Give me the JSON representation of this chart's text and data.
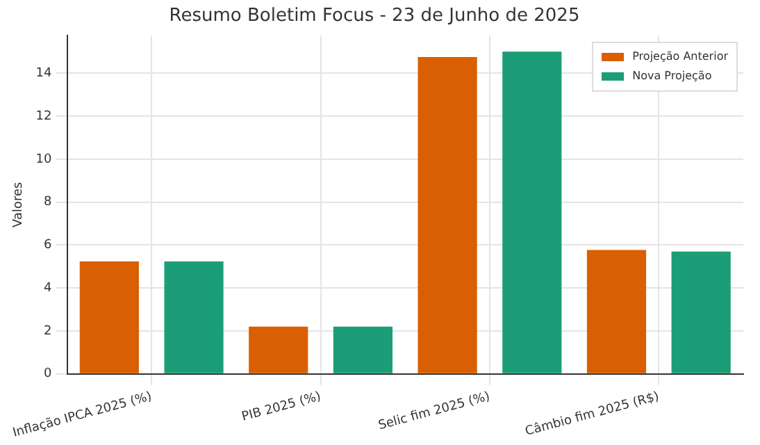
{
  "chart_data": {
    "type": "bar",
    "title": "Resumo Boletim Focus - 23 de Junho de 2025",
    "ylabel": "Valores",
    "categories": [
      "Inflação IPCA 2025 (%)",
      "PIB 2025 (%)",
      "Selic fim 2025 (%)",
      "Câmbio fim 2025 (R$)"
    ],
    "series": [
      {
        "name": "Projeção Anterior",
        "color": "#d95f02",
        "values": [
          5.24,
          2.2,
          14.75,
          5.77
        ]
      },
      {
        "name": "Nova Projeção",
        "color": "#1b9e77",
        "values": [
          5.24,
          2.2,
          15.0,
          5.7
        ]
      }
    ],
    "ylim": [
      0,
      15.75
    ],
    "yticks": [
      0,
      2,
      4,
      6,
      8,
      10,
      12,
      14
    ],
    "grid": true,
    "legend": "top right"
  }
}
